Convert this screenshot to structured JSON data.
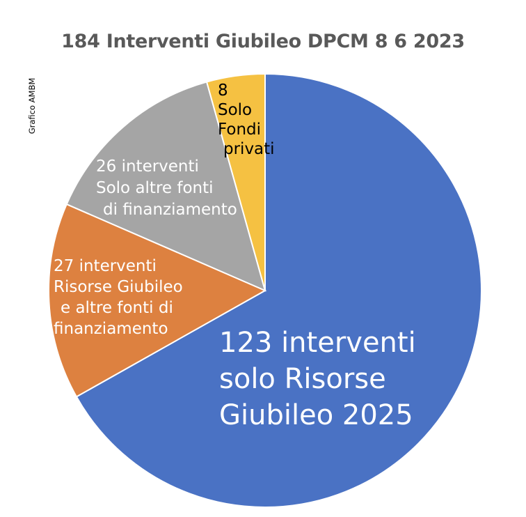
{
  "credit": "Grafico AMBM",
  "chart_data": {
    "type": "pie",
    "title": "184 Interventi Giubileo DPCM 8 6 2023",
    "slices": [
      {
        "value": 123,
        "color": "#4a72c4",
        "label_lines": [
          "123 interventi",
          "solo Risorse",
          "Giubileo 2025"
        ]
      },
      {
        "value": 27,
        "color": "#dd8140",
        "label_lines": [
          "27 interventi",
          "Risorse Giubileo",
          "e altre fonti di",
          "finanziamento"
        ]
      },
      {
        "value": 26,
        "color": "#a5a5a5",
        "label_lines": [
          "26 interventi",
          "Solo altre fonti",
          "di finanziamento"
        ]
      },
      {
        "value": 8,
        "color": "#f5c142",
        "label_lines": [
          "8",
          "Solo",
          "Fondi",
          "privati"
        ]
      }
    ]
  }
}
